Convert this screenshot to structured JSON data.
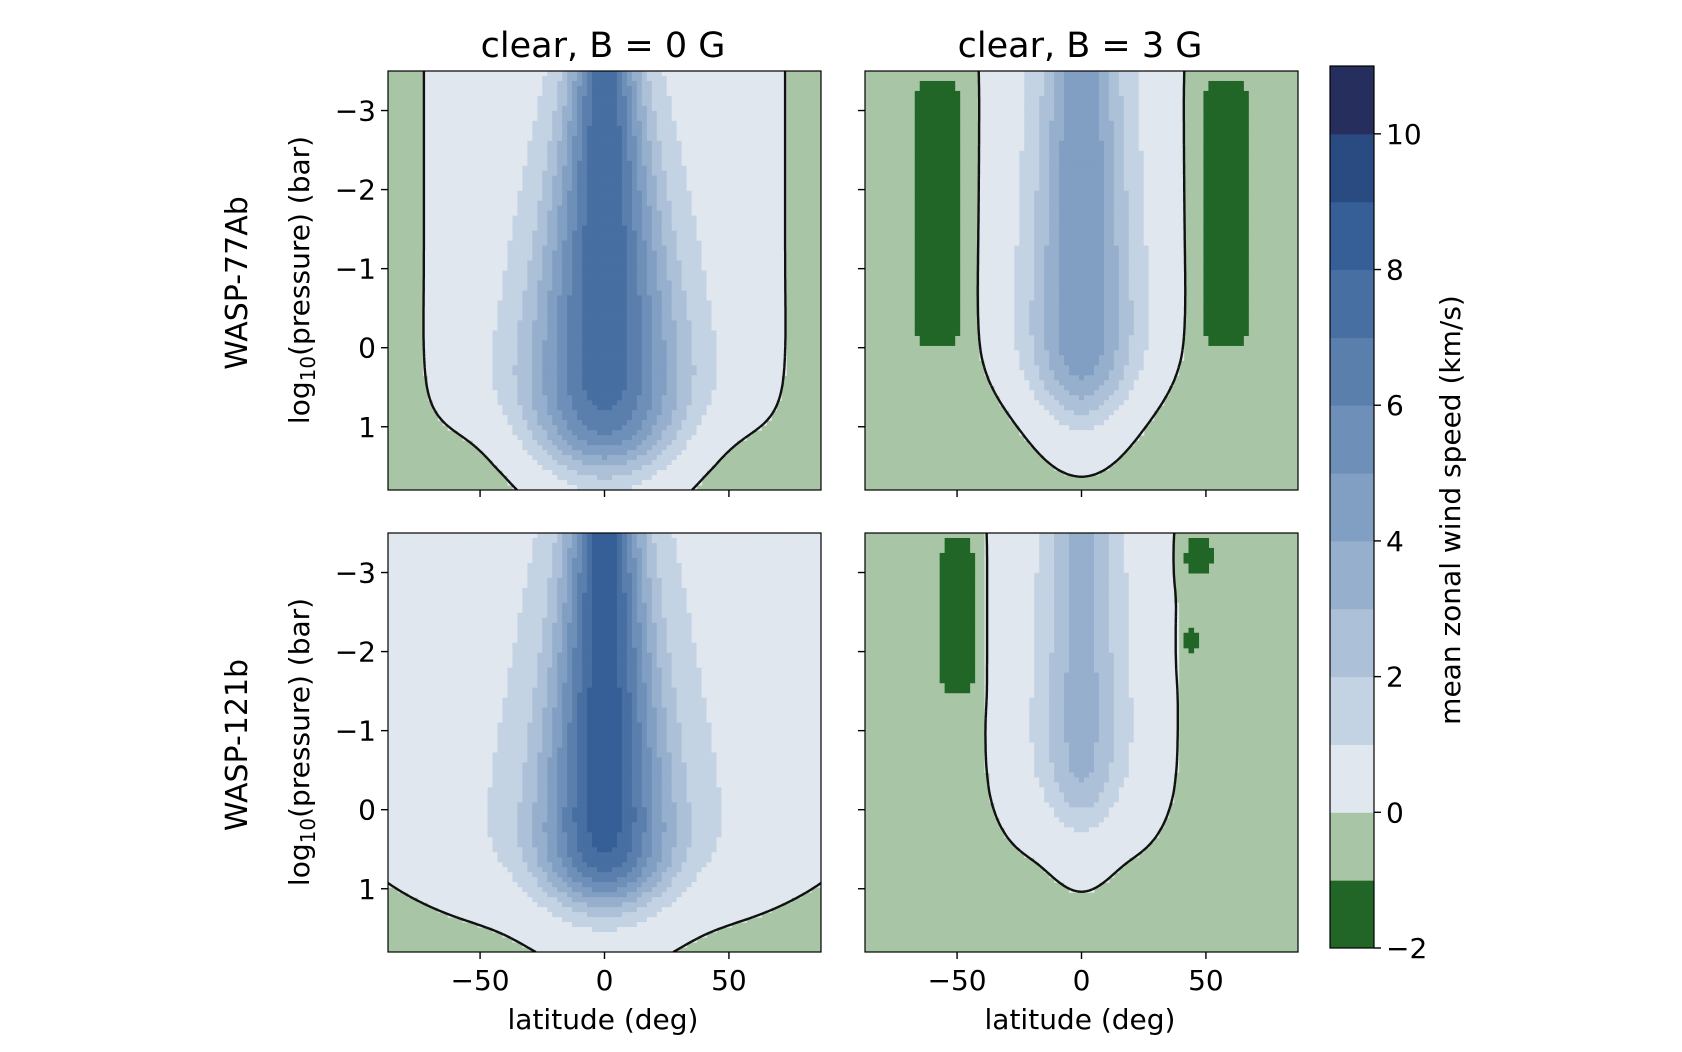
{
  "figure": {
    "colorbar": {
      "label": "mean zonal wind speed (km/s)",
      "levels": [
        -2,
        -1,
        0,
        1,
        2,
        3,
        4,
        5,
        6,
        7,
        8,
        9,
        10,
        11
      ],
      "tick_values": [
        -2,
        0,
        2,
        4,
        6,
        8,
        10
      ],
      "tick_labels": [
        "−2",
        "0",
        "2",
        "4",
        "6",
        "8",
        "10"
      ],
      "colors": [
        "#216627",
        "#a8c5a6",
        "#e1e7ef",
        "#c4d3e3",
        "#acc0d8",
        "#96afcd",
        "#819fc3",
        "#6d8fb8",
        "#5a7fad",
        "#476fa2",
        "#355f96",
        "#2a4a82",
        "#252e5c"
      ]
    },
    "shared": {
      "x_ticks": [
        -50,
        0,
        50
      ],
      "x_tick_labels": [
        "−50",
        "0",
        "50"
      ],
      "y_ticks": [
        -3,
        -2,
        -1,
        0,
        1
      ],
      "y_tick_labels": [
        "−3",
        "−2",
        "−1",
        "0",
        "1"
      ],
      "xlim": [
        -87,
        87
      ],
      "ylim": [
        1.8,
        -3.5
      ],
      "xlabel": "latitude (deg)",
      "ylabel": "log10(pressure) (bar)",
      "ylabel_base": "log",
      "ylabel_sub": "10",
      "ylabel_rest": "(pressure) (bar)",
      "row_labels": [
        "WASP-77Ab",
        "WASP-121b"
      ]
    }
  },
  "chart_data": [
    {
      "type": "heatmap",
      "title": "clear, B = 0 G",
      "planet": "WASP-77Ab",
      "xlabel": "",
      "ylabel": "log10(pressure) (bar)",
      "xlim": [
        -87,
        87
      ],
      "ylim": [
        1.8,
        -3.5
      ],
      "jet": {
        "amp": 7.2,
        "width": 19,
        "top_width": 13,
        "bottom_width": 34,
        "base_depth": 1.45,
        "depth_width": 58
      },
      "background": {
        "amp": 0.85,
        "width": 60,
        "flat_above": 0.0,
        "drop_rate": 0.9,
        "cutoff": 0.1
      },
      "side_jets": []
    },
    {
      "type": "heatmap",
      "title": "clear, B = 3 G",
      "planet": "WASP-77Ab",
      "xlabel": "",
      "ylabel": "",
      "xlim": [
        -87,
        87
      ],
      "ylim": [
        1.8,
        -3.5
      ],
      "jet": {
        "amp": 4.2,
        "width": 17,
        "top_width": 14,
        "bottom_width": 22,
        "base_depth": 0.8,
        "depth_width": 40
      },
      "background": {
        "amp": 0.9,
        "width": 34,
        "flat_above": -0.2,
        "drop_rate": 1.2,
        "cutoff": 0.1
      },
      "side_jets": [
        {
          "center": -58,
          "width": 11,
          "top": -3.4,
          "bottom": 0.0,
          "amp": -1.6
        },
        {
          "center": 58,
          "width": 11,
          "top": -3.4,
          "bottom": 0.0,
          "amp": -1.6
        }
      ]
    },
    {
      "type": "heatmap",
      "title": "",
      "planet": "WASP-121b",
      "xlabel": "latitude (deg)",
      "ylabel": "log10(pressure) (bar)",
      "xlim": [
        -87,
        87
      ],
      "ylim": [
        1.8,
        -3.5
      ],
      "jet": {
        "amp": 7.8,
        "width": 18,
        "top_width": 14,
        "bottom_width": 30,
        "base_depth": 1.1,
        "depth_width": 62
      },
      "background": {
        "amp": 0.95,
        "width": 95,
        "flat_above": 0.5,
        "drop_rate": 1.6,
        "cutoff": 0.1
      },
      "side_jets": []
    },
    {
      "type": "heatmap",
      "title": "",
      "planet": "WASP-121b",
      "xlabel": "latitude (deg)",
      "ylabel": "",
      "xlim": [
        -87,
        87
      ],
      "ylim": [
        1.8,
        -3.5
      ],
      "jet": {
        "amp": 2.7,
        "width": 14,
        "top_width": 12,
        "bottom_width": 18,
        "base_depth": 0.1,
        "depth_width": 28
      },
      "background": {
        "amp": 0.8,
        "width": 30,
        "flat_above": -0.6,
        "drop_rate": 1.2,
        "cutoff": 0.05
      },
      "side_jets": [
        {
          "center": -50,
          "width": 8,
          "top": -3.5,
          "bottom": -1.4,
          "amp": -1.5
        },
        {
          "center": 47,
          "width": 7,
          "top": -3.5,
          "bottom": -2.9,
          "amp": -1.5
        },
        {
          "center": 44,
          "width": 4,
          "top": -2.4,
          "bottom": -1.9,
          "amp": -1.4
        }
      ]
    }
  ]
}
